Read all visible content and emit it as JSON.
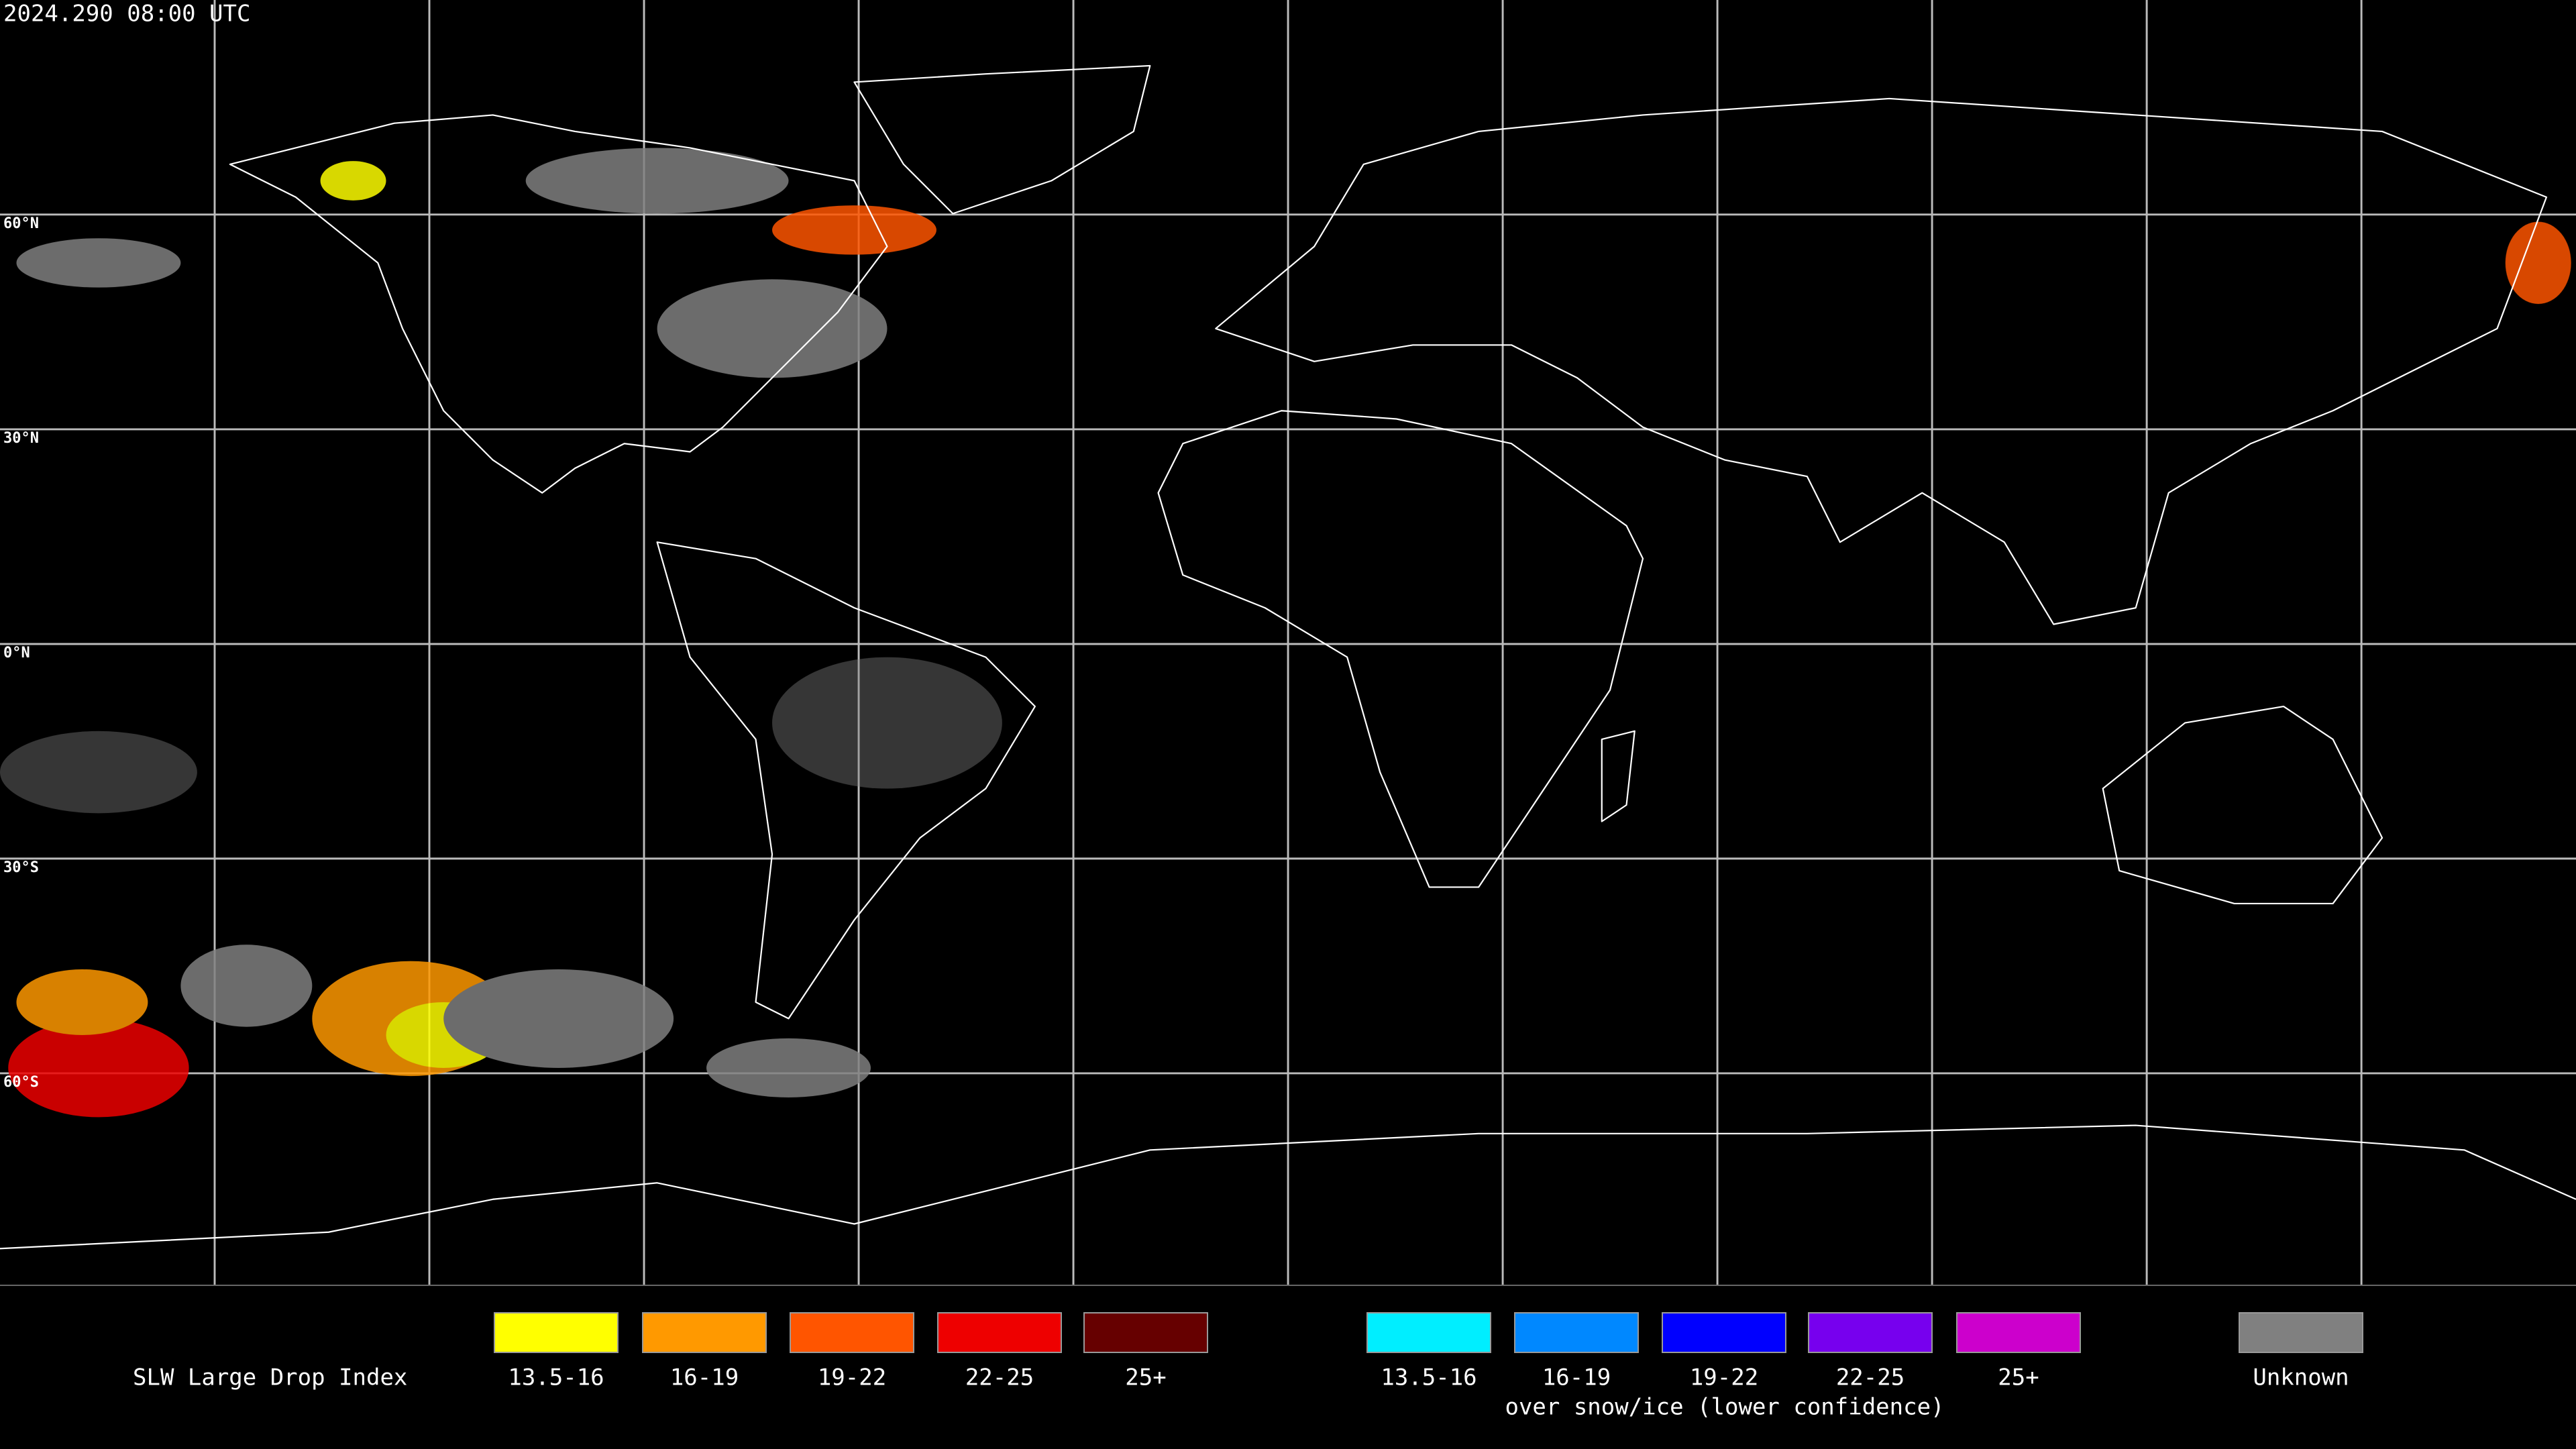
{
  "header": {
    "timestamp": "2024.290 08:00 UTC"
  },
  "map": {
    "lat_labels": [
      "60°N",
      "30°N",
      "0°N",
      "30°S",
      "60°S"
    ]
  },
  "legend": {
    "title": "SLW Large Drop Index",
    "groups": [
      {
        "items": [
          {
            "label": "13.5-16",
            "color": "#ffff00"
          },
          {
            "label": "16-19",
            "color": "#ff9900"
          },
          {
            "label": "19-22",
            "color": "#ff5500"
          },
          {
            "label": "22-25",
            "color": "#ee0000"
          },
          {
            "label": "25+",
            "color": "#660000"
          }
        ]
      },
      {
        "items": [
          {
            "label": "13.5-16",
            "color": "#00eeff"
          },
          {
            "label": "16-19",
            "color": "#0088ff"
          },
          {
            "label": "19-22",
            "color": "#0000ff"
          },
          {
            "label": "22-25",
            "color": "#7700ee"
          },
          {
            "label": "25+",
            "color": "#cc00cc"
          }
        ],
        "caption": "over snow/ice (lower confidence)"
      }
    ],
    "unknown": {
      "label": "Unknown",
      "color": "#808080"
    }
  }
}
